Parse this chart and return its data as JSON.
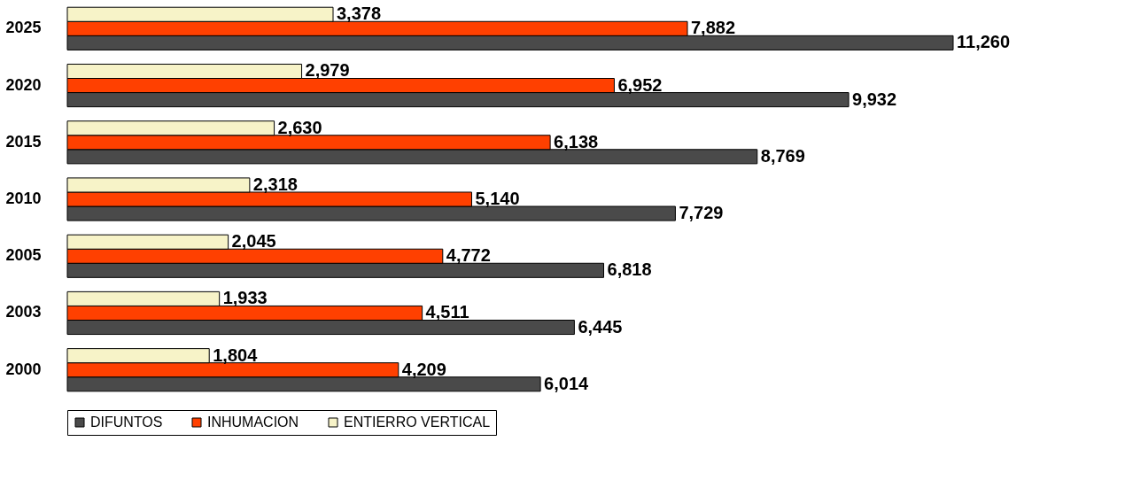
{
  "chart_data": {
    "type": "bar",
    "orientation": "horizontal",
    "categories": [
      "2025",
      "2020",
      "2015",
      "2010",
      "2005",
      "2003",
      "2000"
    ],
    "series": [
      {
        "name": "DIFUNTOS",
        "color": "#4a4a4a",
        "values": [
          11260,
          9932,
          8769,
          7729,
          6818,
          6445,
          6014
        ],
        "value_labels": [
          "11,260",
          "9,932",
          "8,769",
          "7,729",
          "6,818",
          "6,445",
          "6,014"
        ]
      },
      {
        "name": "INHUMACION",
        "color": "#ff4000",
        "values": [
          7882,
          6952,
          6138,
          5140,
          4772,
          4511,
          4209
        ],
        "value_labels": [
          "7,882",
          "6,952",
          "6,138",
          "5,140",
          "4,772",
          "4,511",
          "4,209"
        ]
      },
      {
        "name": "ENTIERRO VERTICAL",
        "color": "#f7f3c8",
        "values": [
          3378,
          2979,
          2630,
          2318,
          2045,
          1933,
          1804
        ],
        "value_labels": [
          "3,378",
          "2,979",
          "2,630",
          "2,318",
          "2,045",
          "1,933",
          "1,804"
        ]
      }
    ],
    "legend": "bottom"
  }
}
